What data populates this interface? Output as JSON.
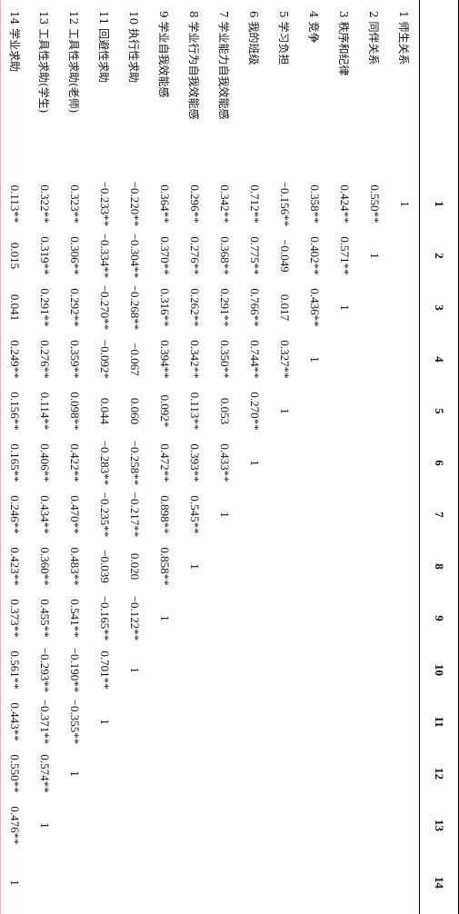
{
  "columns": [
    "",
    "1",
    "2",
    "3",
    "4",
    "5",
    "6",
    "7",
    "8",
    "9",
    "10",
    "11",
    "12",
    "13",
    "14"
  ],
  "rows": [
    {
      "label": "1 师生关系",
      "cells": [
        "1",
        "",
        "",
        "",
        "",
        "",
        "",
        "",
        "",
        "",
        "",
        "",
        "",
        ""
      ]
    },
    {
      "label": "2 同伴关系",
      "cells": [
        "0.550**",
        "1",
        "",
        "",
        "",
        "",
        "",
        "",
        "",
        "",
        "",
        "",
        "",
        ""
      ]
    },
    {
      "label": "3 秩序和纪律",
      "cells": [
        "0.424**",
        "0.571**",
        "1",
        "",
        "",
        "",
        "",
        "",
        "",
        "",
        "",
        "",
        "",
        ""
      ]
    },
    {
      "label": "4 竞争",
      "cells": [
        "0.358**",
        "0.402**",
        "0.436**",
        "1",
        "",
        "",
        "",
        "",
        "",
        "",
        "",
        "",
        "",
        ""
      ]
    },
    {
      "label": "5 学习负担",
      "cells": [
        "−0.156**",
        "−0.049",
        "0.017",
        "0.327**",
        "1",
        "",
        "",
        "",
        "",
        "",
        "",
        "",
        "",
        ""
      ]
    },
    {
      "label": "6 我的班级",
      "cells": [
        "0.712**",
        "0.775**",
        "0.766**",
        "0.744**",
        "0.270**",
        "1",
        "",
        "",
        "",
        "",
        "",
        "",
        "",
        ""
      ]
    },
    {
      "label": "7 学业能力自我效能感",
      "cells": [
        "0.342**",
        "0.368**",
        "0.291**",
        "0.350**",
        "0.053",
        "0.433**",
        "1",
        "",
        "",
        "",
        "",
        "",
        "",
        ""
      ]
    },
    {
      "label": "8 学业行为自我效能感",
      "cells": [
        "0.296**",
        "0.276**",
        "0.262**",
        "0.342**",
        "0.113**",
        "0.393**",
        "0.545**",
        "1",
        "",
        "",
        "",
        "",
        "",
        ""
      ]
    },
    {
      "label": "9 学业自我效能感",
      "cells": [
        "0.364**",
        "0.370**",
        "0.316**",
        "0.394**",
        "0.092*",
        "0.472**",
        "0.898**",
        "0.858**",
        "1",
        "",
        "",
        "",
        "",
        ""
      ]
    },
    {
      "label": "10 执行性求助",
      "cells": [
        "−0.220**",
        "−0.304**",
        "−0.268**",
        "−0.067",
        "0.060",
        "−0.258**",
        "−0.217**",
        "0.020",
        "−0.122**",
        "1",
        "",
        "",
        "",
        ""
      ]
    },
    {
      "label": "11 回避性求助",
      "cells": [
        "−0.233**",
        "−0.334**",
        "−0.270**",
        "−0.092*",
        "0.044",
        "−0.283**",
        "−0.235**",
        "−0.039",
        "−0.165**",
        "0.701**",
        "1",
        "",
        "",
        ""
      ]
    },
    {
      "label": "12 工具性求助(老师)",
      "cells": [
        "0.323**",
        "0.306**",
        "0.292**",
        "0.359**",
        "0.098**",
        "0.422**",
        "0.470**",
        "0.483**",
        "0.541**",
        "−0.190**",
        "−0.355**",
        "1",
        "",
        ""
      ]
    },
    {
      "label": "13 工具性求助(学生)",
      "cells": [
        "0.322**",
        "0.319**",
        "0.291**",
        "0.276**",
        "0.114**",
        "0.406**",
        "0.434**",
        "0.360**",
        "0.455**",
        "−0.293**",
        "−0.371**",
        "0.574**",
        "1",
        ""
      ]
    },
    {
      "label": "14 学业求助",
      "cells": [
        "0.113**",
        "0.015",
        "0.041",
        "0.249**",
        "0.156**",
        "0.165**",
        "0.246**",
        "0.423**",
        "0.373**",
        "0.561**",
        "0.443**",
        "0.550**",
        "0.476**",
        "1"
      ]
    }
  ]
}
